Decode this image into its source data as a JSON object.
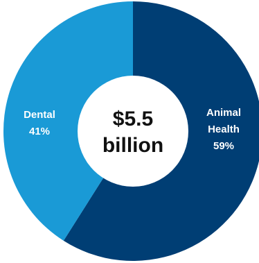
{
  "chart_data": {
    "type": "pie",
    "donut": true,
    "center_label": [
      "$5.5",
      "billion"
    ],
    "slices": [
      {
        "label": [
          "Animal",
          "Health",
          "59%"
        ],
        "value": 59,
        "color": "#003e74"
      },
      {
        "label": [
          "Dental",
          "41%"
        ],
        "value": 41,
        "color": "#1a9ad6"
      }
    ]
  }
}
